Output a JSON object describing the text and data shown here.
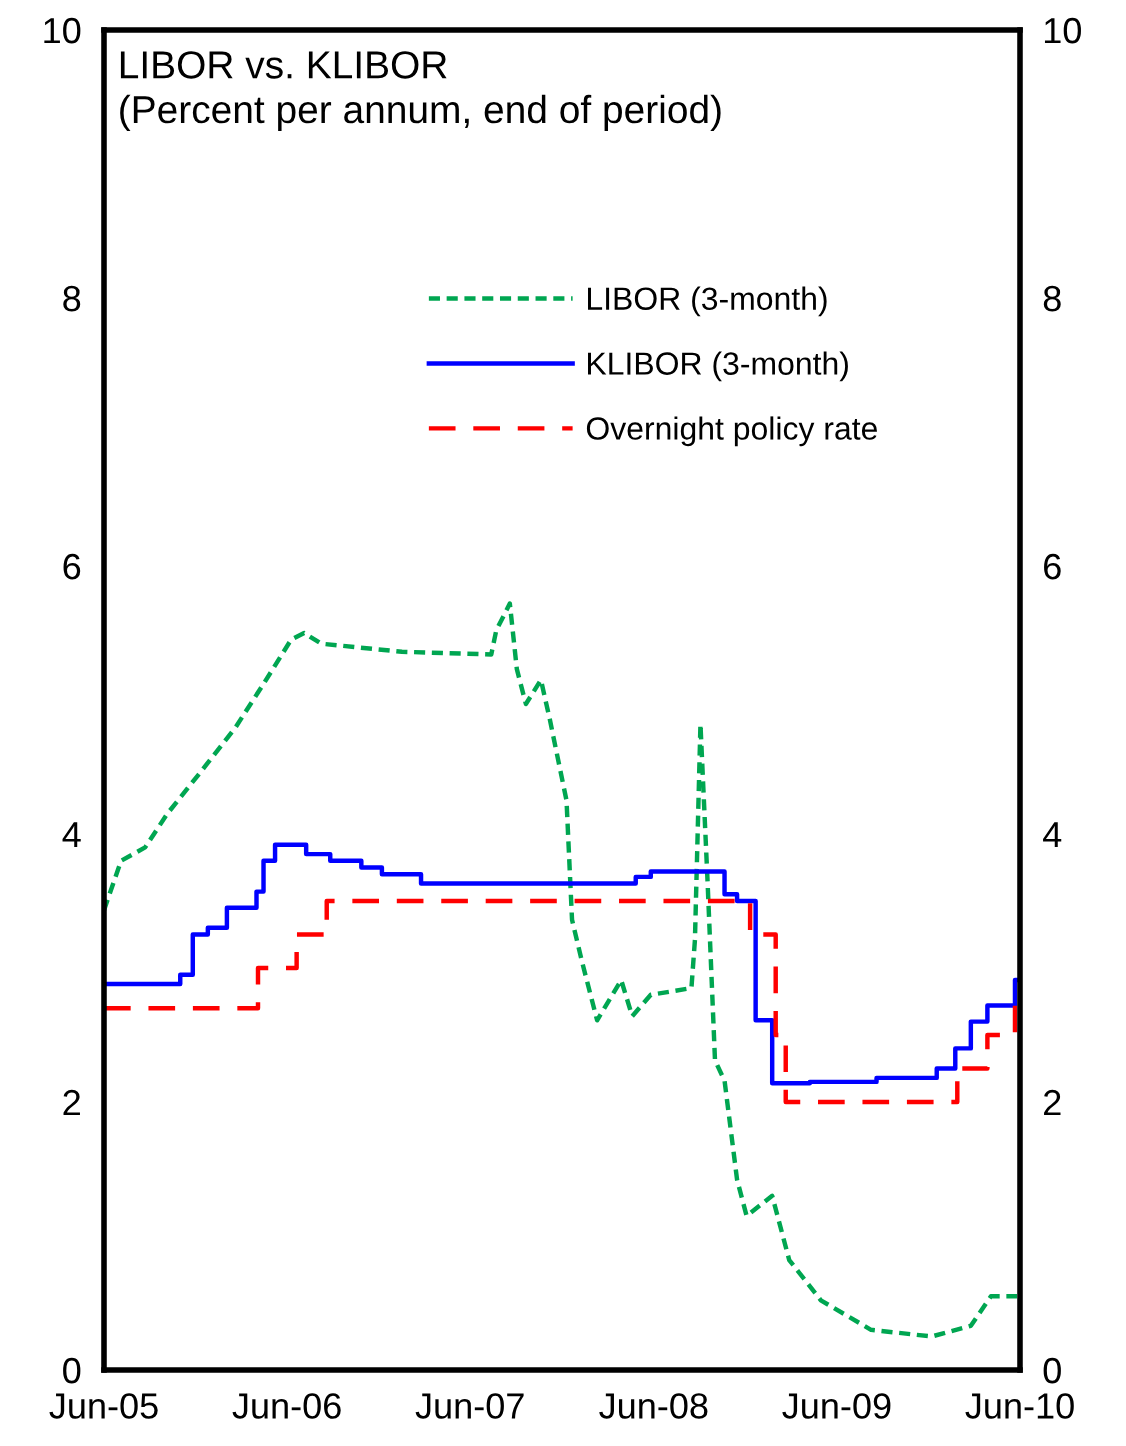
{
  "chart_data": {
    "type": "line",
    "title": "LIBOR vs. KLIBOR\n(Percent per annum, end of period)",
    "xlim": [
      "2005-06-30",
      "2010-06-30"
    ],
    "xticks": [
      {
        "value": "2005-06-30",
        "label": "Jun-05"
      },
      {
        "value": "2006-06-30",
        "label": "Jun-06"
      },
      {
        "value": "2007-06-30",
        "label": "Jun-07"
      },
      {
        "value": "2008-06-30",
        "label": "Jun-08"
      },
      {
        "value": "2009-06-30",
        "label": "Jun-09"
      },
      {
        "value": "2010-06-30",
        "label": "Jun-10"
      }
    ],
    "ylim": [
      0,
      10
    ],
    "yticks": [
      0,
      2,
      4,
      6,
      8,
      10
    ],
    "y2lim": [
      0,
      10
    ],
    "y2ticks": [
      0,
      2,
      4,
      6,
      8,
      10
    ],
    "grid": false,
    "legend": "top",
    "marker": "none",
    "series": [
      {
        "name": "LIBOR (3-month)",
        "color": "#00a651",
        "line_style": "dotted",
        "x": [
          "2005-06-30",
          "2005-08-03",
          "2005-09-20",
          "2005-11-03",
          "2006-01-08",
          "2006-03-20",
          "2006-05-14",
          "2006-07-08",
          "2006-08-03",
          "2006-09-06",
          "2007-02-14",
          "2007-08-11",
          "2007-08-21",
          "2007-09-17",
          "2007-10-01",
          "2007-10-19",
          "2007-11-18",
          "2007-12-06",
          "2008-01-08",
          "2008-01-19",
          "2008-02-07",
          "2008-03-09",
          "2008-04-26",
          "2008-05-18",
          "2008-06-24",
          "2008-09-13",
          "2008-09-20",
          "2008-10-01",
          "2008-10-15",
          "2008-10-30",
          "2008-11-18",
          "2008-12-13",
          "2009-01-01",
          "2009-02-21",
          "2009-03-27",
          "2009-05-29",
          "2009-09-06",
          "2010-01-05",
          "2010-03-24",
          "2010-05-03",
          "2010-06-24"
        ],
        "values": [
          3.43,
          3.8,
          3.9,
          4.15,
          4.46,
          4.8,
          5.12,
          5.45,
          5.5,
          5.42,
          5.36,
          5.34,
          5.52,
          5.72,
          5.23,
          4.97,
          5.15,
          4.85,
          4.25,
          3.36,
          3.06,
          2.61,
          2.91,
          2.64,
          2.8,
          2.85,
          3.21,
          4.82,
          3.66,
          2.31,
          2.16,
          1.42,
          1.15,
          1.3,
          0.82,
          0.52,
          0.3,
          0.25,
          0.33,
          0.55,
          0.55
        ]
      },
      {
        "name": "KLIBOR (3-month)",
        "color": "#0000ff",
        "type": "step",
        "line_style": "solid",
        "x": [
          "2005-06-30",
          "2005-11-29",
          "2005-12-24",
          "2006-01-23",
          "2006-03-02",
          "2006-04-30",
          "2006-05-14",
          "2006-06-06",
          "2006-08-07",
          "2006-09-24",
          "2006-11-25",
          "2007-01-05",
          "2007-03-24",
          "2008-05-25",
          "2008-06-24",
          "2008-11-18",
          "2008-12-13",
          "2009-01-19",
          "2009-02-21",
          "2009-05-07",
          "2009-09-17",
          "2010-01-15",
          "2010-02-21",
          "2010-03-24",
          "2010-04-26",
          "2010-06-20",
          "2010-06-30"
        ],
        "values": [
          2.88,
          2.95,
          3.25,
          3.3,
          3.45,
          3.57,
          3.8,
          3.92,
          3.85,
          3.8,
          3.75,
          3.7,
          3.63,
          3.68,
          3.72,
          3.55,
          3.5,
          2.61,
          2.14,
          2.15,
          2.18,
          2.25,
          2.4,
          2.6,
          2.72,
          2.91,
          2.91
        ]
      },
      {
        "name": "Overnight policy rate",
        "color": "#ff0000",
        "type": "step",
        "line_style": "dashed",
        "x": [
          "2005-06-30",
          "2006-05-03",
          "2006-07-19",
          "2006-09-17",
          "2009-01-08",
          "2009-02-28",
          "2009-03-20",
          "2010-02-25",
          "2010-04-26",
          "2010-06-20",
          "2010-06-30"
        ],
        "values": [
          2.7,
          3.0,
          3.25,
          3.5,
          3.25,
          2.5,
          2.0,
          2.25,
          2.5,
          2.75,
          2.75
        ]
      }
    ]
  }
}
